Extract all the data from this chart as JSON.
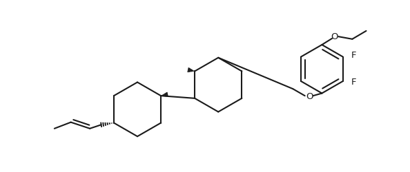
{
  "bg_color": "#ffffff",
  "line_color": "#1a1a1a",
  "line_width": 1.5,
  "font_size": 9.5,
  "figsize": [
    5.94,
    2.5
  ],
  "dpi": 100,
  "xlim": [
    -0.2,
    5.94
  ],
  "ylim": [
    -0.1,
    2.6
  ]
}
